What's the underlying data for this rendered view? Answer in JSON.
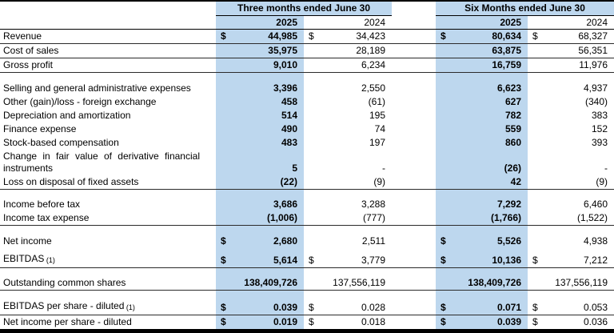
{
  "colors": {
    "highlight": "#bdd7ee",
    "border": "#000000"
  },
  "table": {
    "groups": [
      {
        "title": "Three months ended June 30",
        "years": [
          "2025",
          "2024"
        ]
      },
      {
        "title": "Six Months ended June 30",
        "years": [
          "2025",
          "2024"
        ]
      }
    ],
    "rows": [
      {
        "label": "Revenue",
        "cells": [
          [
            "$",
            "44,985"
          ],
          [
            "$",
            "34,423"
          ],
          [
            "$",
            "80,634"
          ],
          [
            "$",
            "68,327"
          ]
        ],
        "rule_below": true
      },
      {
        "label": "Cost of sales",
        "cells": [
          [
            "",
            "35,975"
          ],
          [
            "",
            "28,189"
          ],
          [
            "",
            "63,875"
          ],
          [
            "",
            "56,351"
          ]
        ],
        "rule_below": true
      },
      {
        "label": "Gross profit",
        "cells": [
          [
            "",
            "9,010"
          ],
          [
            "",
            "6,234"
          ],
          [
            "",
            "16,759"
          ],
          [
            "",
            "11,976"
          ]
        ],
        "rule_below": true
      },
      {
        "label": "Selling and general administrative expenses",
        "gap_before": "md",
        "cells": [
          [
            "",
            "3,396"
          ],
          [
            "",
            "2,550"
          ],
          [
            "",
            "6,623"
          ],
          [
            "",
            "4,937"
          ]
        ]
      },
      {
        "label": "Other (gain)/loss - foreign exchange",
        "cells": [
          [
            "",
            "458"
          ],
          [
            "",
            "(61)"
          ],
          [
            "",
            "627"
          ],
          [
            "",
            "(340)"
          ]
        ]
      },
      {
        "label": "Depreciation and amortization",
        "cells": [
          [
            "",
            "514"
          ],
          [
            "",
            "195"
          ],
          [
            "",
            "782"
          ],
          [
            "",
            "383"
          ]
        ]
      },
      {
        "label": "Finance expense",
        "cells": [
          [
            "",
            "490"
          ],
          [
            "",
            "74"
          ],
          [
            "",
            "559"
          ],
          [
            "",
            "152"
          ]
        ]
      },
      {
        "label": "Stock-based compensation",
        "cells": [
          [
            "",
            "483"
          ],
          [
            "",
            "197"
          ],
          [
            "",
            "860"
          ],
          [
            "",
            "393"
          ]
        ]
      },
      {
        "label": "Change in fair value of derivative financial instruments",
        "wrap": true,
        "cells": [
          [
            "",
            "5"
          ],
          [
            "",
            "-"
          ],
          [
            "",
            "(26)"
          ],
          [
            "",
            "-"
          ]
        ]
      },
      {
        "label": "Loss on disposal of fixed assets",
        "cells": [
          [
            "",
            "(22)"
          ],
          [
            "",
            "(9)"
          ],
          [
            "",
            "42"
          ],
          [
            "",
            "(9)"
          ]
        ],
        "rule_below": true
      },
      {
        "label": "Income before tax",
        "gap_before": "md",
        "cells": [
          [
            "",
            "3,686"
          ],
          [
            "",
            "3,288"
          ],
          [
            "",
            "7,292"
          ],
          [
            "",
            "6,460"
          ]
        ]
      },
      {
        "label": "Income tax expense",
        "cells": [
          [
            "",
            "(1,006)"
          ],
          [
            "",
            "(777)"
          ],
          [
            "",
            "(1,766)"
          ],
          [
            "",
            "(1,522)"
          ]
        ],
        "rule_below": true
      },
      {
        "label": "Net income",
        "gap_before": "md",
        "cells": [
          [
            "$",
            "2,680"
          ],
          [
            "",
            "2,511"
          ],
          [
            "$",
            "5,526"
          ],
          [
            "",
            "4,938"
          ]
        ]
      },
      {
        "label": "EBITDAS",
        "note": "(1)",
        "gap_before": "sm",
        "cells": [
          [
            "$",
            "5,614"
          ],
          [
            "$",
            "3,779"
          ],
          [
            "$",
            "10,136"
          ],
          [
            "$",
            "7,212"
          ]
        ],
        "rule_below": true
      },
      {
        "label": "Outstanding common shares",
        "gap_before": "md",
        "cells": [
          [
            "",
            "138,409,726"
          ],
          [
            "",
            "137,556,119"
          ],
          [
            "",
            "138,409,726"
          ],
          [
            "",
            "137,556,119"
          ]
        ],
        "rule_below": true
      },
      {
        "label": "EBITDAS per share - diluted",
        "note": "(1)",
        "gap_before": "md",
        "cells": [
          [
            "$",
            "0.039"
          ],
          [
            "$",
            "0.028"
          ],
          [
            "$",
            "0.071"
          ],
          [
            "$",
            "0.053"
          ]
        ],
        "rule_below": true
      },
      {
        "label": "Net income per share - diluted",
        "cells": [
          [
            "$",
            "0.019"
          ],
          [
            "$",
            "0.018"
          ],
          [
            "$",
            "0.039"
          ],
          [
            "$",
            "0.036"
          ]
        ]
      }
    ]
  }
}
